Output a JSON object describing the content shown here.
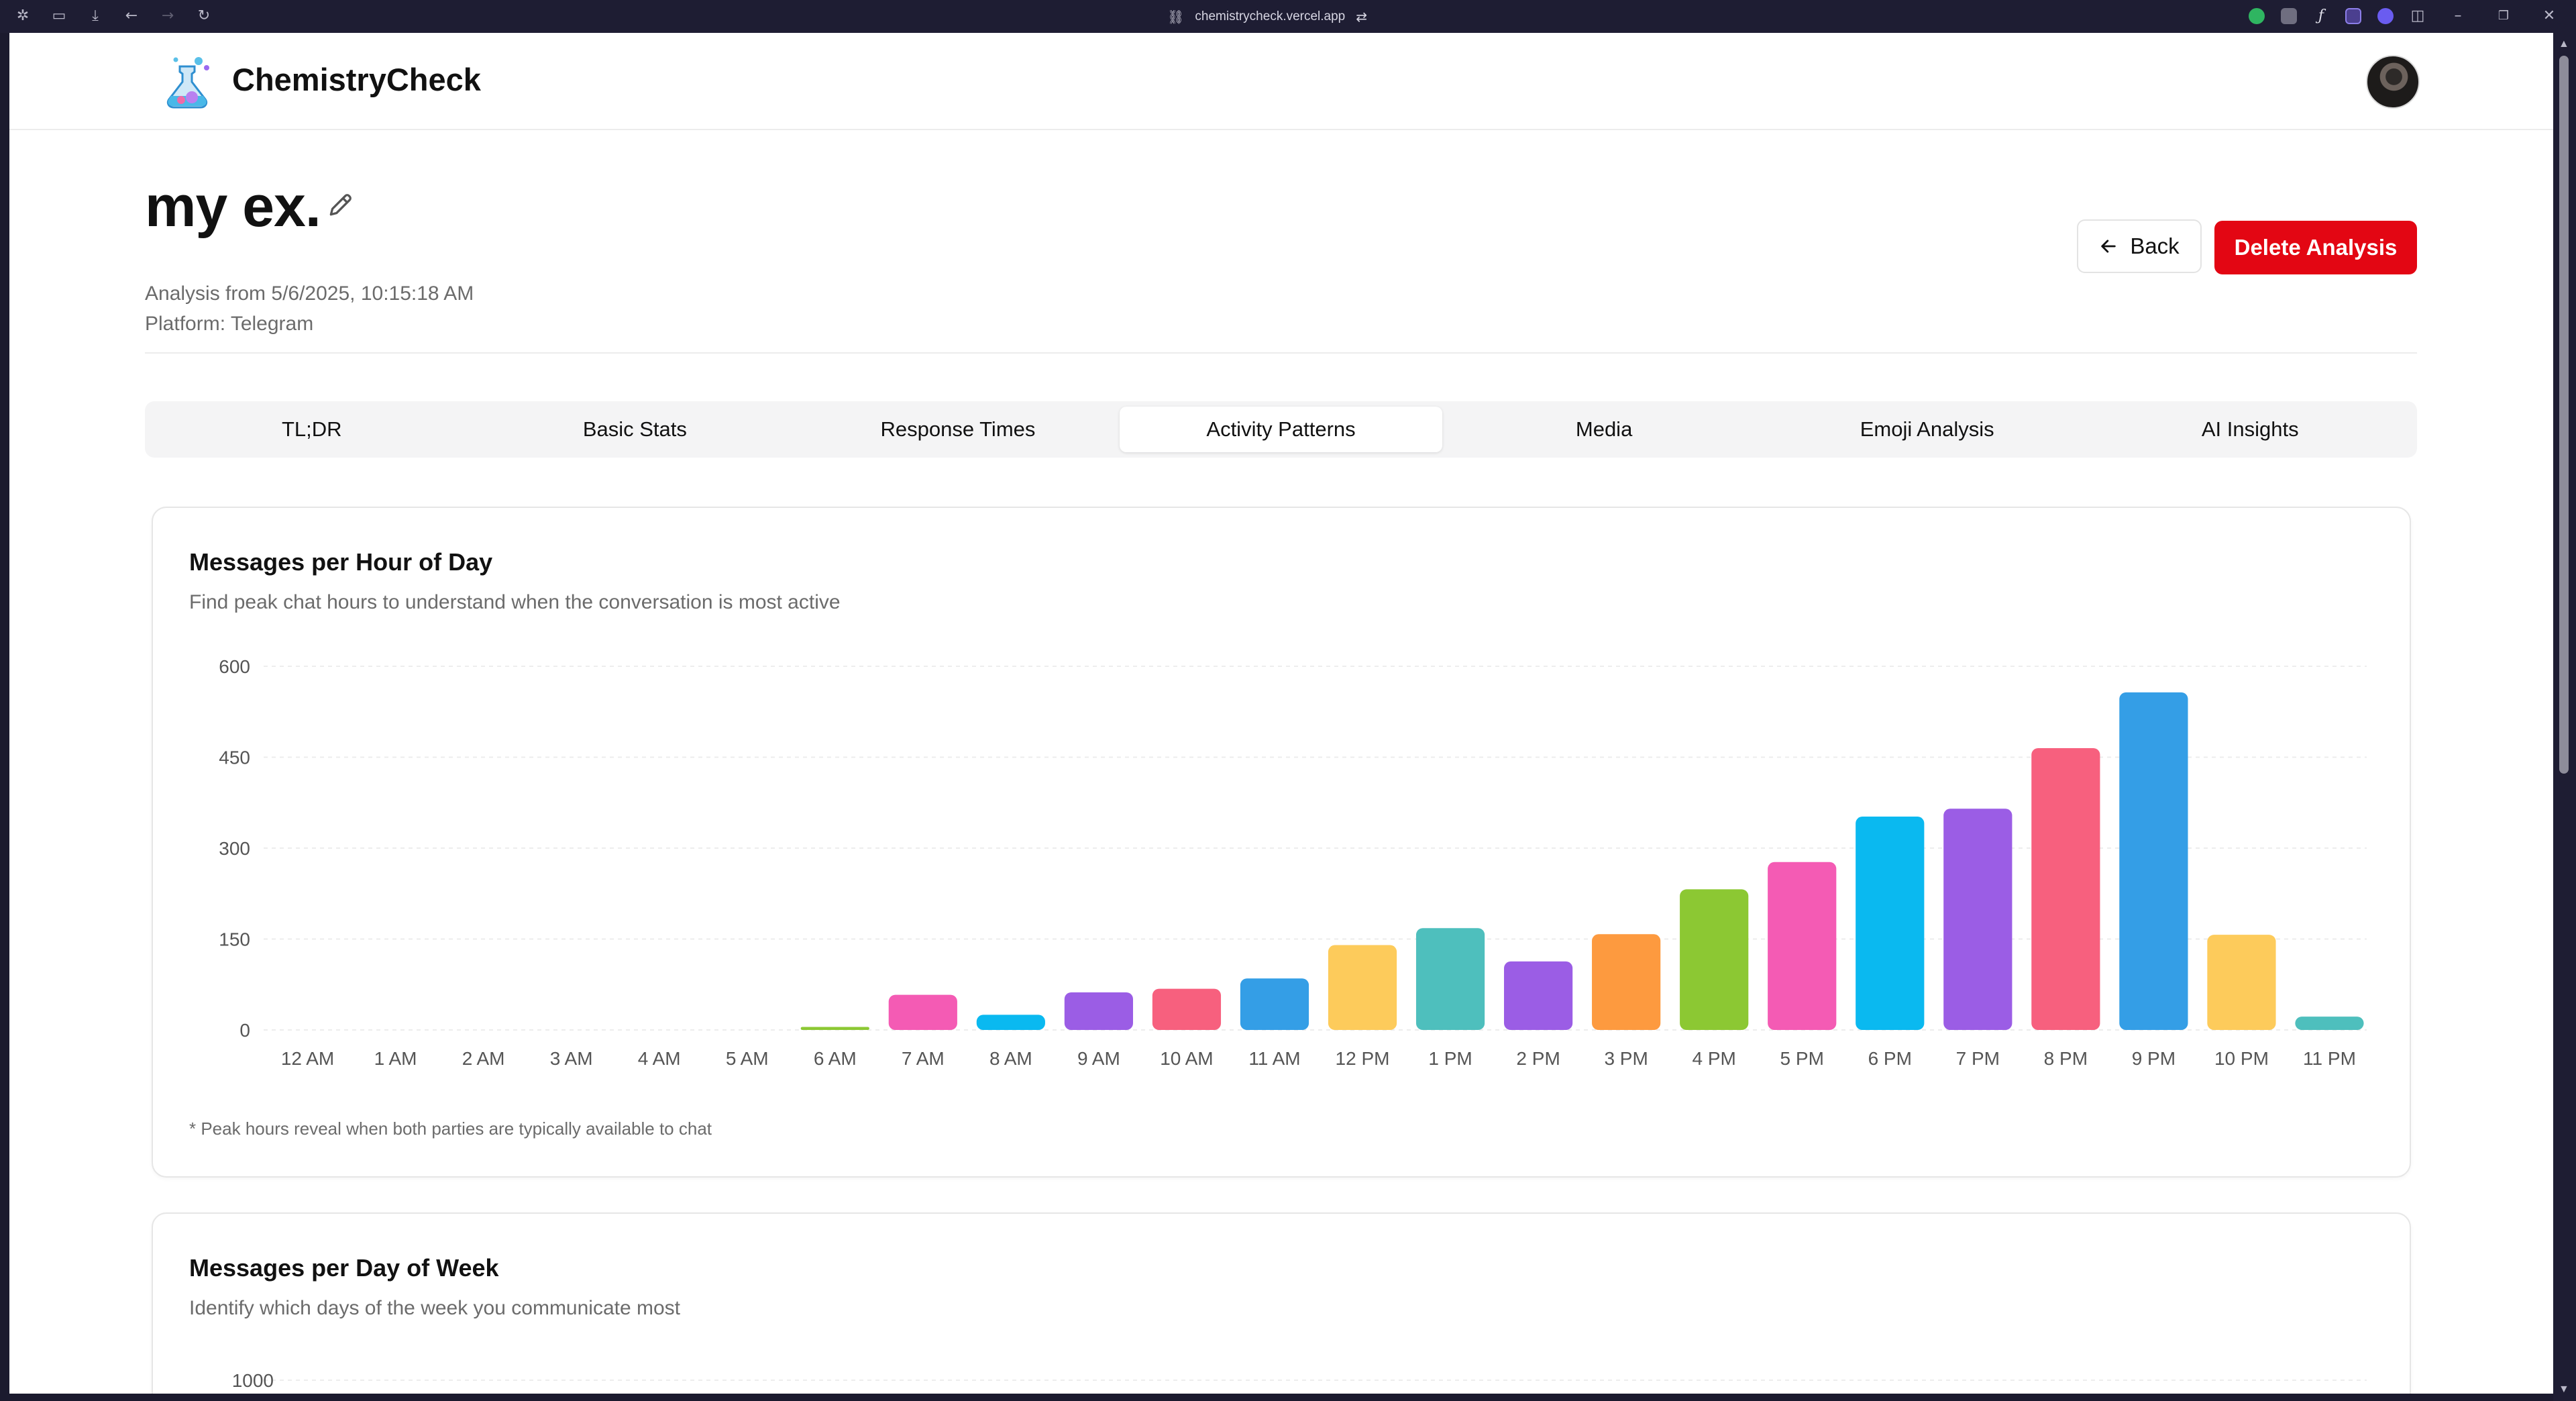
{
  "browser": {
    "url": "chemistrycheck.vercel.app"
  },
  "header": {
    "brand": "ChemistryCheck"
  },
  "analysis": {
    "title": "my ex.",
    "date_line": "Analysis from 5/6/2025, 10:15:18 AM",
    "platform_line": "Platform: Telegram",
    "back_label": "Back",
    "delete_label": "Delete Analysis"
  },
  "tabs": [
    {
      "label": "TL;DR",
      "active": false
    },
    {
      "label": "Basic Stats",
      "active": false
    },
    {
      "label": "Response Times",
      "active": false
    },
    {
      "label": "Activity Patterns",
      "active": true
    },
    {
      "label": "Media",
      "active": false
    },
    {
      "label": "Emoji Analysis",
      "active": false
    },
    {
      "label": "AI Insights",
      "active": false
    }
  ],
  "hour_card": {
    "title": "Messages per Hour of Day",
    "subtitle": "Find peak chat hours to understand when the conversation is most active",
    "note": "* Peak hours reveal when both parties are typically available to chat"
  },
  "week_card": {
    "title": "Messages per Day of Week",
    "subtitle": "Identify which days of the week you communicate most"
  },
  "chart_data": [
    {
      "type": "bar",
      "title": "Messages per Hour of Day",
      "categories": [
        "12 AM",
        "1 AM",
        "2 AM",
        "3 AM",
        "4 AM",
        "5 AM",
        "6 AM",
        "7 AM",
        "8 AM",
        "9 AM",
        "10 AM",
        "11 AM",
        "12 PM",
        "1 PM",
        "2 PM",
        "3 PM",
        "4 PM",
        "5 PM",
        "6 PM",
        "7 PM",
        "8 PM",
        "9 PM",
        "10 PM",
        "11 PM"
      ],
      "values": [
        0,
        0,
        0,
        0,
        0,
        0,
        5,
        58,
        25,
        62,
        68,
        85,
        140,
        168,
        113,
        158,
        232,
        277,
        352,
        365,
        465,
        557,
        157,
        22
      ],
      "colors": [
        "#4ebfbd",
        "#4ebfbd",
        "#4ebfbd",
        "#4ebfbd",
        "#4ebfbd",
        "#4ebfbd",
        "#8cc833",
        "#f45bb4",
        "#0ab9f0",
        "#9b5de5",
        "#f7607e",
        "#349ee6",
        "#fdcb5b",
        "#4ebfbd",
        "#9b5de5",
        "#fd9a3f",
        "#8cc833",
        "#f45bb4",
        "#0ab9f0",
        "#9b5de5",
        "#f7607e",
        "#349ee6",
        "#fdcb5b",
        "#4ebfbd"
      ],
      "yticks": [
        0,
        150,
        300,
        450,
        600
      ],
      "ylim": [
        0,
        600
      ],
      "grid": true
    },
    {
      "type": "bar",
      "title": "Messages per Day of Week",
      "yticks": [
        1000
      ]
    }
  ]
}
